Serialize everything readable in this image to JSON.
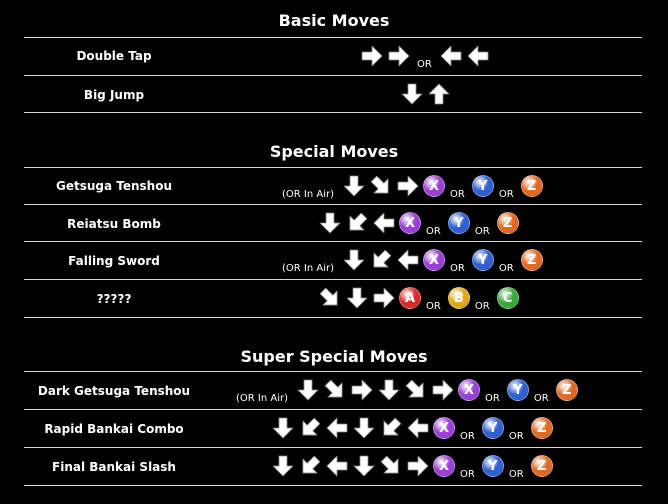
{
  "sections": [
    {
      "title": "Basic Moves",
      "moves": [
        {
          "name": "Double Tap",
          "air": "",
          "inputs": [
            "R",
            "R",
            "or",
            "L",
            "L"
          ]
        },
        {
          "name": "Big Jump",
          "air": "",
          "inputs": [
            "D",
            "U"
          ]
        }
      ]
    },
    {
      "title": "Special Moves",
      "moves": [
        {
          "name": "Getsuga Tenshou",
          "air": "(OR In Air)",
          "inputs": [
            "D",
            "DR",
            "R",
            "X",
            "or",
            "Y",
            "or",
            "Z"
          ]
        },
        {
          "name": "Reiatsu Bomb",
          "air": "",
          "inputs": [
            "D",
            "DL",
            "L",
            "X",
            "or",
            "Y",
            "or",
            "Z"
          ]
        },
        {
          "name": "Falling Sword",
          "air": "(OR In Air)",
          "inputs": [
            "D",
            "DL",
            "L",
            "X",
            "or",
            "Y",
            "or",
            "Z"
          ]
        },
        {
          "name": "?????",
          "air": "",
          "inputs": [
            "DR",
            "D",
            "R",
            "A",
            "or",
            "B",
            "or",
            "C"
          ]
        }
      ]
    },
    {
      "title": "Super Special Moves",
      "moves": [
        {
          "name": "Dark Getsuga Tenshou",
          "air": "(OR In Air)",
          "inputs": [
            "D",
            "DR",
            "R",
            "D",
            "DR",
            "R",
            "X",
            "or",
            "Y",
            "or",
            "Z"
          ]
        },
        {
          "name": "Rapid Bankai Combo",
          "air": "",
          "inputs": [
            "D",
            "DL",
            "L",
            "D",
            "DL",
            "L",
            "X",
            "or",
            "Y",
            "or",
            "Z"
          ]
        },
        {
          "name": "Final Bankai Slash",
          "air": "",
          "inputs": [
            "D",
            "DL",
            "L",
            "D",
            "DR",
            "R",
            "X",
            "or",
            "Y",
            "or",
            "Z"
          ]
        }
      ]
    }
  ],
  "or_label": "OR",
  "button_colors": {
    "X": "#9b3fd6",
    "Y": "#2f5fd0",
    "Z": "#e06a24",
    "A": "#d82a2a",
    "B": "#e0a818",
    "C": "#3aa83a"
  }
}
